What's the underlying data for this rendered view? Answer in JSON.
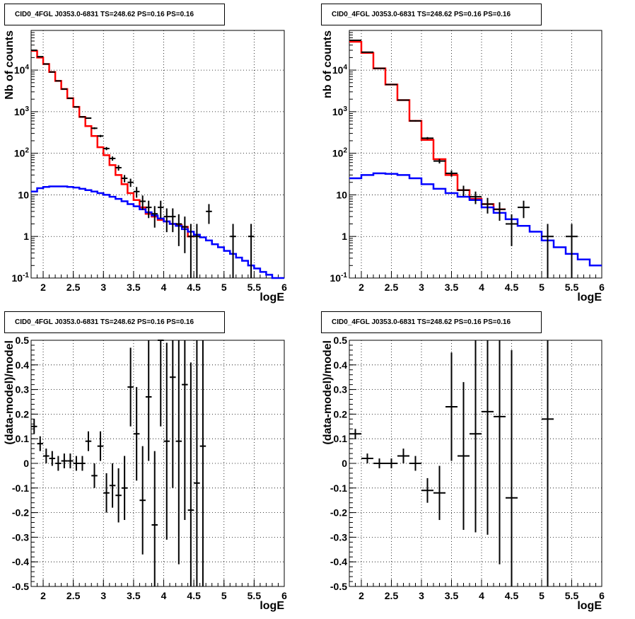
{
  "chart_data": [
    {
      "panel": "top-left",
      "type": "histogram",
      "title": "CID0_4FGL J0353.0-6831 TS=248.62 PS=0.16 PS=0.16",
      "xlabel": "logE",
      "ylabel": "Nb of counts",
      "yscale": "log",
      "xlim": [
        1.8,
        6.0
      ],
      "ylim": [
        0.1,
        90000
      ],
      "xticks": [
        "2",
        "2.5",
        "3",
        "3.5",
        "4",
        "4.5",
        "5",
        "5.5",
        "6"
      ],
      "yticks": [
        "10^{-1}",
        "1",
        "10",
        "10^{2}",
        "10^{3}",
        "10^{4}"
      ],
      "grid": true,
      "series": [
        {
          "color": "#ff0000",
          "style": "step",
          "x": [
            1.8,
            1.9,
            2.0,
            2.1,
            2.2,
            2.3,
            2.4,
            2.5,
            2.6,
            2.7,
            2.8,
            2.9,
            3.0,
            3.1,
            3.2,
            3.3,
            3.4,
            3.5,
            3.6,
            3.7,
            3.8,
            3.9,
            4.0,
            4.1,
            4.2,
            4.3,
            4.4
          ],
          "values": [
            29000,
            20000,
            14000,
            9000,
            5500,
            3500,
            2100,
            1300,
            750,
            450,
            260,
            140,
            90,
            52,
            30,
            18,
            11,
            7.5,
            5,
            3.5,
            3,
            2.5,
            2.3,
            2.0,
            1.9,
            1.7,
            1.0
          ]
        },
        {
          "color": "#0000ff",
          "style": "step",
          "x": [
            1.8,
            1.9,
            2.0,
            2.1,
            2.2,
            2.3,
            2.4,
            2.5,
            2.6,
            2.7,
            2.8,
            2.9,
            3.0,
            3.1,
            3.2,
            3.3,
            3.4,
            3.5,
            3.6,
            3.7,
            3.8,
            3.9,
            4.0,
            4.1,
            4.2,
            4.3,
            4.4,
            4.5,
            4.6,
            4.7,
            4.8,
            4.9,
            5.0,
            5.1,
            5.2,
            5.3,
            5.4,
            5.5,
            5.6,
            5.7,
            5.8,
            5.9
          ],
          "values": [
            12,
            14.5,
            15.5,
            16,
            16,
            16,
            15.5,
            15,
            14,
            13,
            12,
            11,
            10,
            9,
            8,
            7,
            6,
            5.3,
            4.5,
            3.8,
            3.2,
            2.7,
            2.3,
            2.0,
            1.8,
            1.5,
            1.3,
            1.1,
            0.95,
            0.8,
            0.65,
            0.55,
            0.45,
            0.38,
            0.31,
            0.26,
            0.2,
            0.17,
            0.14,
            0.12,
            0.1,
            0.08
          ]
        },
        {
          "color": "#000000",
          "style": "errorbars",
          "x": [
            1.85,
            1.95,
            2.05,
            2.15,
            2.25,
            2.35,
            2.45,
            2.55,
            2.65,
            2.75,
            2.85,
            2.95,
            3.05,
            3.15,
            3.25,
            3.35,
            3.45,
            3.55,
            3.65,
            3.75,
            3.85,
            3.95,
            4.05,
            4.15,
            4.25,
            4.35,
            4.45,
            4.55,
            4.75,
            5.15,
            5.45
          ],
          "values": [
            30000,
            21000,
            14000,
            9000,
            5500,
            3500,
            2100,
            1300,
            750,
            700,
            400,
            260,
            130,
            75,
            45,
            25,
            20,
            12,
            7,
            5,
            3.5,
            5,
            3,
            3,
            2,
            1.7,
            1,
            1,
            4,
            1,
            1
          ]
        }
      ]
    },
    {
      "panel": "top-right",
      "type": "histogram",
      "title": "CID0_4FGL J0353.0-6831 TS=248.62 PS=0.16 PS=0.16",
      "xlabel": "logE",
      "ylabel": "nb of counts",
      "yscale": "log",
      "xlim": [
        1.8,
        6.0
      ],
      "ylim": [
        0.1,
        90000
      ],
      "xticks": [
        "2",
        "2.5",
        "3",
        "3.5",
        "4",
        "4.5",
        "5",
        "5.5",
        "6"
      ],
      "yticks": [
        "10^{-1}",
        "1",
        "10",
        "10^{2}",
        "10^{3}",
        "10^{4}"
      ],
      "grid": true,
      "series": [
        {
          "color": "#ff0000",
          "style": "step",
          "x": [
            1.8,
            2.0,
            2.2,
            2.4,
            2.6,
            2.8,
            3.0,
            3.2,
            3.4,
            3.6,
            3.8,
            4.0,
            4.2
          ],
          "values": [
            48000,
            26000,
            11000,
            4500,
            1900,
            600,
            210,
            72,
            30,
            13,
            8,
            6,
            4.5
          ]
        },
        {
          "color": "#0000ff",
          "style": "step",
          "x": [
            1.8,
            2.0,
            2.2,
            2.4,
            2.6,
            2.8,
            3.0,
            3.2,
            3.4,
            3.6,
            3.8,
            4.0,
            4.2,
            4.4,
            4.6,
            4.8,
            5.0,
            5.2,
            5.4,
            5.6,
            5.8
          ],
          "values": [
            25,
            30,
            33,
            32,
            30,
            25,
            18,
            14,
            11,
            9,
            7.5,
            5,
            3.7,
            2.6,
            1.8,
            1.3,
            0.8,
            0.55,
            0.38,
            0.28,
            0.2
          ]
        },
        {
          "color": "#000000",
          "style": "errorbars",
          "x": [
            1.9,
            2.1,
            2.3,
            2.5,
            2.7,
            2.9,
            3.1,
            3.3,
            3.5,
            3.7,
            3.9,
            4.1,
            4.3,
            4.5,
            4.7,
            5.1,
            5.5
          ],
          "values": [
            52000,
            27000,
            11000,
            4500,
            1900,
            600,
            230,
            65,
            33,
            13,
            9,
            6,
            4.5,
            2,
            5,
            1,
            1
          ]
        }
      ]
    },
    {
      "panel": "bottom-left",
      "type": "scatter",
      "title": "CID0_4FGL J0353.0-6831 TS=248.62 PS=0.16 PS=0.16",
      "xlabel": "logE",
      "ylabel": "(data-model)/model",
      "xlim": [
        1.8,
        6.0
      ],
      "ylim": [
        -0.5,
        0.5
      ],
      "xticks": [
        "2",
        "2.5",
        "3",
        "3.5",
        "4",
        "4.5",
        "5",
        "5.5",
        "6"
      ],
      "yticks": [
        "-0.5",
        "-0.4",
        "-0.3",
        "-0.2",
        "-0.1",
        "0",
        "0.1",
        "0.2",
        "0.3",
        "0.4",
        "0.5"
      ],
      "grid": true,
      "series": [
        {
          "color": "#000000",
          "style": "errorbars",
          "x": [
            1.85,
            1.95,
            2.05,
            2.15,
            2.25,
            2.35,
            2.45,
            2.55,
            2.65,
            2.75,
            2.85,
            2.95,
            3.05,
            3.15,
            3.25,
            3.35,
            3.45,
            3.55,
            3.65,
            3.75,
            3.85,
            3.95,
            4.05,
            4.15,
            4.25,
            4.35,
            4.45,
            4.55,
            4.65
          ],
          "values": [
            0.15,
            0.08,
            0.03,
            0.02,
            0.0,
            0.01,
            0.01,
            0.0,
            0.0,
            0.09,
            -0.05,
            0.07,
            -0.12,
            -0.09,
            -0.13,
            -0.1,
            0.31,
            0.12,
            -0.15,
            0.27,
            -0.25,
            0.5,
            0.09,
            0.35,
            0.09,
            0.32,
            -0.19,
            -0.08,
            0.07
          ],
          "errors": [
            0.03,
            0.03,
            0.03,
            0.03,
            0.03,
            0.03,
            0.03,
            0.03,
            0.03,
            0.04,
            0.05,
            0.06,
            0.08,
            0.09,
            0.11,
            0.13,
            0.16,
            0.19,
            0.22,
            0.26,
            0.3,
            0.35,
            0.4,
            0.45,
            0.5,
            0.55,
            0.6,
            0.7,
            0.8
          ]
        }
      ]
    },
    {
      "panel": "bottom-right",
      "type": "scatter",
      "title": "CID0_4FGL J0353.0-6831 TS=248.62 PS=0.16 PS=0.16",
      "xlabel": "logE",
      "ylabel": "(data-model)/model",
      "xlim": [
        1.8,
        6.0
      ],
      "ylim": [
        -0.5,
        0.5
      ],
      "xticks": [
        "2",
        "2.5",
        "3",
        "3.5",
        "4",
        "4.5",
        "5",
        "5.5",
        "6"
      ],
      "yticks": [
        "-0.5",
        "-0.4",
        "-0.3",
        "-0.2",
        "-0.1",
        "0",
        "0.1",
        "0.2",
        "0.3",
        "0.4",
        "0.5"
      ],
      "grid": true,
      "series": [
        {
          "color": "#000000",
          "style": "errorbars",
          "x": [
            1.9,
            2.1,
            2.3,
            2.5,
            2.7,
            2.9,
            3.1,
            3.3,
            3.5,
            3.7,
            3.9,
            4.1,
            4.3,
            4.5,
            5.1
          ],
          "values": [
            0.12,
            0.02,
            0.0,
            0.0,
            0.03,
            0.0,
            -0.11,
            -0.12,
            0.23,
            0.03,
            0.12,
            0.21,
            0.19,
            -0.14,
            0.18
          ],
          "errors": [
            0.02,
            0.02,
            0.02,
            0.02,
            0.03,
            0.03,
            0.05,
            0.11,
            0.22,
            0.3,
            0.4,
            0.5,
            0.6,
            0.6,
            0.8
          ]
        }
      ]
    }
  ]
}
